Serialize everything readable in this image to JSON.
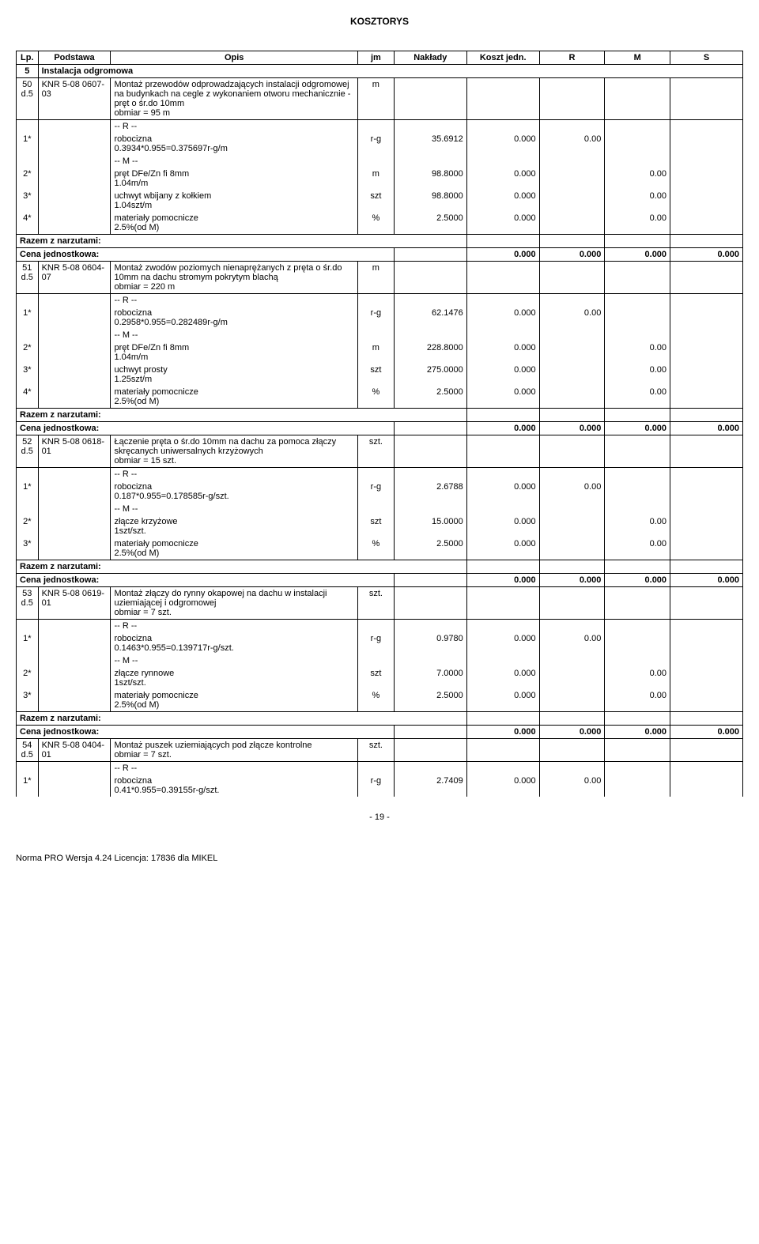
{
  "doc_title": "KOSZTORYS",
  "header": {
    "lp": "Lp.",
    "podstawa": "Podstawa",
    "opis": "Opis",
    "jm": "jm",
    "naklady": "Nakłady",
    "koszt_jedn": "Koszt jedn.",
    "r": "R",
    "m": "M",
    "s": "S"
  },
  "section": {
    "num": "5",
    "title": "Instalacja odgromowa"
  },
  "items": [
    {
      "num": "50",
      "subref": "d.5",
      "basis": "KNR 5-08 0607-03",
      "desc": "Montaż przewodów odprowadzających instalacji odgromowej na budynkach na cegle z wykonaniem otworu mechanicznie - pręt o śr.do 10mm",
      "obmiar": "obmiar  = 95 m",
      "jm": "m",
      "lines": [
        {
          "idx": "1*",
          "label": "-- R --",
          "name": "robocizna",
          "calc": "0.3934*0.955=0.375697r-g/m",
          "jm": "r-g",
          "nak": "35.6912",
          "kj": "0.000",
          "r": "0.00",
          "m": "",
          "s": ""
        },
        {
          "idx": "2*",
          "label": "-- M --",
          "name": "pręt DFe/Zn fi 8mm",
          "calc": "1.04m/m",
          "jm": "m",
          "nak": "98.8000",
          "kj": "0.000",
          "r": "",
          "m": "0.00",
          "s": ""
        },
        {
          "idx": "3*",
          "label": "",
          "name": "uchwyt wbijany z kołkiem",
          "calc": "1.04szt/m",
          "jm": "szt",
          "nak": "98.8000",
          "kj": "0.000",
          "r": "",
          "m": "0.00",
          "s": ""
        },
        {
          "idx": "4*",
          "label": "",
          "name": "materiały pomocnicze",
          "calc": "2.5%(od M)",
          "jm": "%",
          "nak": "2.5000",
          "kj": "0.000",
          "r": "",
          "m": "0.00",
          "s": ""
        }
      ],
      "razem": "Razem z narzutami:",
      "cena": "Cena jednostkowa:",
      "cena_val": "0.000",
      "r_tot": "0.000",
      "m_tot": "0.000",
      "s_tot": "0.000"
    },
    {
      "num": "51",
      "subref": "d.5",
      "basis": "KNR 5-08 0604-07",
      "desc": "Montaż zwodów poziomych nienaprężanych z pręta o śr.do 10mm na dachu stromym pokrytym blachą",
      "obmiar": "obmiar  = 220 m",
      "jm": "m",
      "lines": [
        {
          "idx": "1*",
          "label": "-- R --",
          "name": "robocizna",
          "calc": "0.2958*0.955=0.282489r-g/m",
          "jm": "r-g",
          "nak": "62.1476",
          "kj": "0.000",
          "r": "0.00",
          "m": "",
          "s": ""
        },
        {
          "idx": "2*",
          "label": "-- M --",
          "name": "pręt DFe/Zn fi 8mm",
          "calc": "1.04m/m",
          "jm": "m",
          "nak": "228.8000",
          "kj": "0.000",
          "r": "",
          "m": "0.00",
          "s": ""
        },
        {
          "idx": "3*",
          "label": "",
          "name": "uchwyt prosty",
          "calc": "1.25szt/m",
          "jm": "szt",
          "nak": "275.0000",
          "kj": "0.000",
          "r": "",
          "m": "0.00",
          "s": ""
        },
        {
          "idx": "4*",
          "label": "",
          "name": "materiały pomocnicze",
          "calc": "2.5%(od M)",
          "jm": "%",
          "nak": "2.5000",
          "kj": "0.000",
          "r": "",
          "m": "0.00",
          "s": ""
        }
      ],
      "razem": "Razem z narzutami:",
      "cena": "Cena jednostkowa:",
      "cena_val": "0.000",
      "r_tot": "0.000",
      "m_tot": "0.000",
      "s_tot": "0.000"
    },
    {
      "num": "52",
      "subref": "d.5",
      "basis": "KNR 5-08 0618-01",
      "desc": "Łączenie pręta o śr.do 10mm na dachu za pomoca złączy skręcanych uniwersalnych krzyżowych",
      "obmiar": "obmiar  = 15 szt.",
      "jm": "szt.",
      "lines": [
        {
          "idx": "1*",
          "label": "-- R --",
          "name": "robocizna",
          "calc": "0.187*0.955=0.178585r-g/szt.",
          "jm": "r-g",
          "nak": "2.6788",
          "kj": "0.000",
          "r": "0.00",
          "m": "",
          "s": ""
        },
        {
          "idx": "2*",
          "label": "-- M --",
          "name": "złącze krzyżowe",
          "calc": "1szt/szt.",
          "jm": "szt",
          "nak": "15.0000",
          "kj": "0.000",
          "r": "",
          "m": "0.00",
          "s": ""
        },
        {
          "idx": "3*",
          "label": "",
          "name": "materiały pomocnicze",
          "calc": "2.5%(od M)",
          "jm": "%",
          "nak": "2.5000",
          "kj": "0.000",
          "r": "",
          "m": "0.00",
          "s": ""
        }
      ],
      "razem": "Razem z narzutami:",
      "cena": "Cena jednostkowa:",
      "cena_val": "0.000",
      "r_tot": "0.000",
      "m_tot": "0.000",
      "s_tot": "0.000"
    },
    {
      "num": "53",
      "subref": "d.5",
      "basis": "KNR 5-08 0619-01",
      "desc": "Montaż złączy do rynny okapowej na dachu w instalacji uziemiającej i odgromowej",
      "obmiar": "obmiar  = 7 szt.",
      "jm": "szt.",
      "lines": [
        {
          "idx": "1*",
          "label": "-- R --",
          "name": "robocizna",
          "calc": "0.1463*0.955=0.139717r-g/szt.",
          "jm": "r-g",
          "nak": "0.9780",
          "kj": "0.000",
          "r": "0.00",
          "m": "",
          "s": ""
        },
        {
          "idx": "2*",
          "label": "-- M --",
          "name": "złącze rynnowe",
          "calc": "1szt/szt.",
          "jm": "szt",
          "nak": "7.0000",
          "kj": "0.000",
          "r": "",
          "m": "0.00",
          "s": ""
        },
        {
          "idx": "3*",
          "label": "",
          "name": "materiały pomocnicze",
          "calc": "2.5%(od M)",
          "jm": "%",
          "nak": "2.5000",
          "kj": "0.000",
          "r": "",
          "m": "0.00",
          "s": ""
        }
      ],
      "razem": "Razem z narzutami:",
      "cena": "Cena jednostkowa:",
      "cena_val": "0.000",
      "r_tot": "0.000",
      "m_tot": "0.000",
      "s_tot": "0.000"
    },
    {
      "num": "54",
      "subref": "d.5",
      "basis": "KNR 5-08 0404-01",
      "desc": "Montaż puszek uziemiających pod złącze kontrolne",
      "obmiar": "obmiar  = 7 szt.",
      "jm": "szt.",
      "lines": [
        {
          "idx": "1*",
          "label": "-- R --",
          "name": "robocizna",
          "calc": "0.41*0.955=0.39155r-g/szt.",
          "jm": "r-g",
          "nak": "2.7409",
          "kj": "0.000",
          "r": "0.00",
          "m": "",
          "s": ""
        }
      ]
    }
  ],
  "page_num": "- 19 -",
  "footer": "Norma PRO Wersja 4.24 Licencja: 17836 dla MIKEL"
}
